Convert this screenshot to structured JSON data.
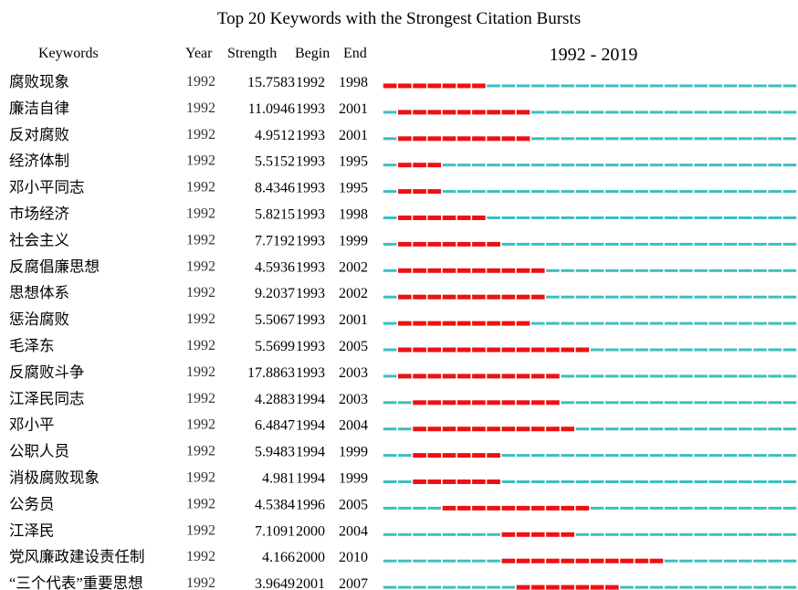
{
  "chart_data": {
    "type": "table",
    "title": "Top 20 Keywords with the Strongest Citation Bursts",
    "columns": [
      "Keywords",
      "Year",
      "Strength",
      "Begin",
      "End"
    ],
    "range_label": "1992 - 2019",
    "x_range": [
      1992,
      2019
    ],
    "colors": {
      "burst": "#ee1111",
      "timeline": "#3cbfc0"
    },
    "rows": [
      {
        "keyword": "腐败现象",
        "year": "1992",
        "strength": "15.7583",
        "begin": 1992,
        "end": 1998
      },
      {
        "keyword": "廉洁自律",
        "year": "1992",
        "strength": "11.0946",
        "begin": 1993,
        "end": 2001
      },
      {
        "keyword": "反对腐败",
        "year": "1992",
        "strength": "4.9512",
        "begin": 1993,
        "end": 2001
      },
      {
        "keyword": "经济体制",
        "year": "1992",
        "strength": "5.5152",
        "begin": 1993,
        "end": 1995
      },
      {
        "keyword": "邓小平同志",
        "year": "1992",
        "strength": "8.4346",
        "begin": 1993,
        "end": 1995
      },
      {
        "keyword": "市场经济",
        "year": "1992",
        "strength": "5.8215",
        "begin": 1993,
        "end": 1998
      },
      {
        "keyword": "社会主义",
        "year": "1992",
        "strength": "7.7192",
        "begin": 1993,
        "end": 1999
      },
      {
        "keyword": "反腐倡廉思想",
        "year": "1992",
        "strength": "4.5936",
        "begin": 1993,
        "end": 2002
      },
      {
        "keyword": "思想体系",
        "year": "1992",
        "strength": "9.2037",
        "begin": 1993,
        "end": 2002
      },
      {
        "keyword": "惩治腐败",
        "year": "1992",
        "strength": "5.5067",
        "begin": 1993,
        "end": 2001
      },
      {
        "keyword": "毛泽东",
        "year": "1992",
        "strength": "5.5699",
        "begin": 1993,
        "end": 2005
      },
      {
        "keyword": "反腐败斗争",
        "year": "1992",
        "strength": "17.8863",
        "begin": 1993,
        "end": 2003
      },
      {
        "keyword": "江泽民同志",
        "year": "1992",
        "strength": "4.2883",
        "begin": 1994,
        "end": 2003
      },
      {
        "keyword": "邓小平",
        "year": "1992",
        "strength": "6.4847",
        "begin": 1994,
        "end": 2004
      },
      {
        "keyword": "公职人员",
        "year": "1992",
        "strength": "5.9483",
        "begin": 1994,
        "end": 1999
      },
      {
        "keyword": "消极腐败现象",
        "year": "1992",
        "strength": "4.981",
        "begin": 1994,
        "end": 1999
      },
      {
        "keyword": "公务员",
        "year": "1992",
        "strength": "4.5384",
        "begin": 1996,
        "end": 2005
      },
      {
        "keyword": "江泽民",
        "year": "1992",
        "strength": "7.1091",
        "begin": 2000,
        "end": 2004
      },
      {
        "keyword": "党风廉政建设责任制",
        "year": "1992",
        "strength": "4.166",
        "begin": 2000,
        "end": 2010
      },
      {
        "keyword": "“三个代表”重要思想",
        "year": "1992",
        "strength": "3.9649",
        "begin": 2001,
        "end": 2007
      }
    ]
  }
}
